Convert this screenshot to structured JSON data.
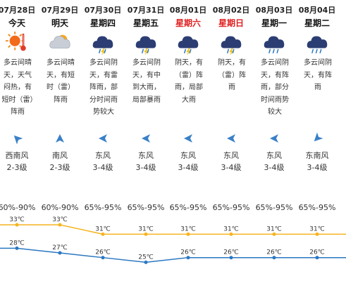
{
  "days": [
    {
      "date": "07月28日",
      "weekday": "今天",
      "weekend": false,
      "icon": "sunny-thunder-icon",
      "desc": "多云间晴天，天气闷热，有短时（雷）阵雨",
      "wind_icon": "wind-arrow-sw-icon",
      "wind_dir": "西南风",
      "wind_level": "2-3级",
      "humidity": "60%-90%",
      "high": 33,
      "low": 28
    },
    {
      "date": "07月29日",
      "weekday": "明天",
      "weekend": false,
      "icon": "sun-cloud-icon",
      "desc": "多云间晴天，有短时（雷）阵雨",
      "wind_icon": "wind-arrow-s-icon",
      "wind_dir": "南风",
      "wind_level": "2-3级",
      "humidity": "60%-90%",
      "high": 33,
      "low": 27
    },
    {
      "date": "07月30日",
      "weekday": "星期四",
      "weekend": false,
      "icon": "thunderstorm-icon",
      "desc": "多云间阴天，有雷阵雨，部分时间雨势较大",
      "wind_icon": "wind-arrow-e-icon",
      "wind_dir": "东风",
      "wind_level": "3-4级",
      "humidity": "65%-95%",
      "high": 31,
      "low": 26
    },
    {
      "date": "07月31日",
      "weekday": "星期五",
      "weekend": false,
      "icon": "thunderstorm-icon",
      "desc": "多云间阴天，有中到大雨，局部暴雨",
      "wind_icon": "wind-arrow-e-icon",
      "wind_dir": "东风",
      "wind_level": "3-4级",
      "humidity": "65%-95%",
      "high": 31,
      "low": 25
    },
    {
      "date": "08月01日",
      "weekday": "星期六",
      "weekend": true,
      "icon": "thunderstorm-icon",
      "desc": "阴天，有（雷）阵雨，局部大雨",
      "wind_icon": "wind-arrow-e-icon",
      "wind_dir": "东风",
      "wind_level": "3-4级",
      "humidity": "65%-95%",
      "high": 31,
      "low": 26
    },
    {
      "date": "08月02日",
      "weekday": "星期日",
      "weekend": true,
      "icon": "thunderstorm-icon",
      "desc": "阴天，有（雷）阵雨",
      "wind_icon": "wind-arrow-e-icon",
      "wind_dir": "东风",
      "wind_level": "3-4级",
      "humidity": "65%-95%",
      "high": 31,
      "low": 26
    },
    {
      "date": "08月03日",
      "weekday": "星期一",
      "weekend": false,
      "icon": "rain-cloud-icon",
      "desc": "多云间阴天，有阵雨，部分时间雨势较大",
      "wind_icon": "wind-arrow-e-icon",
      "wind_dir": "东风",
      "wind_level": "3-4级",
      "humidity": "65%-95%",
      "high": 31,
      "low": 26
    },
    {
      "date": "08月04日",
      "weekday": "星期二",
      "weekend": false,
      "icon": "rain-cloud-icon",
      "desc": "多云间阴天，有阵雨",
      "wind_icon": "wind-arrow-se-icon",
      "wind_dir": "东南风",
      "wind_level": "3-4级",
      "humidity": "65%-95%",
      "high": 31,
      "low": 26
    }
  ],
  "temp_unit": "℃",
  "colors": {
    "high_line": "#f5b41e",
    "low_line": "#2a77c2",
    "weekend_text": "#e02020",
    "wind_arrow": "#3a80c8"
  }
}
